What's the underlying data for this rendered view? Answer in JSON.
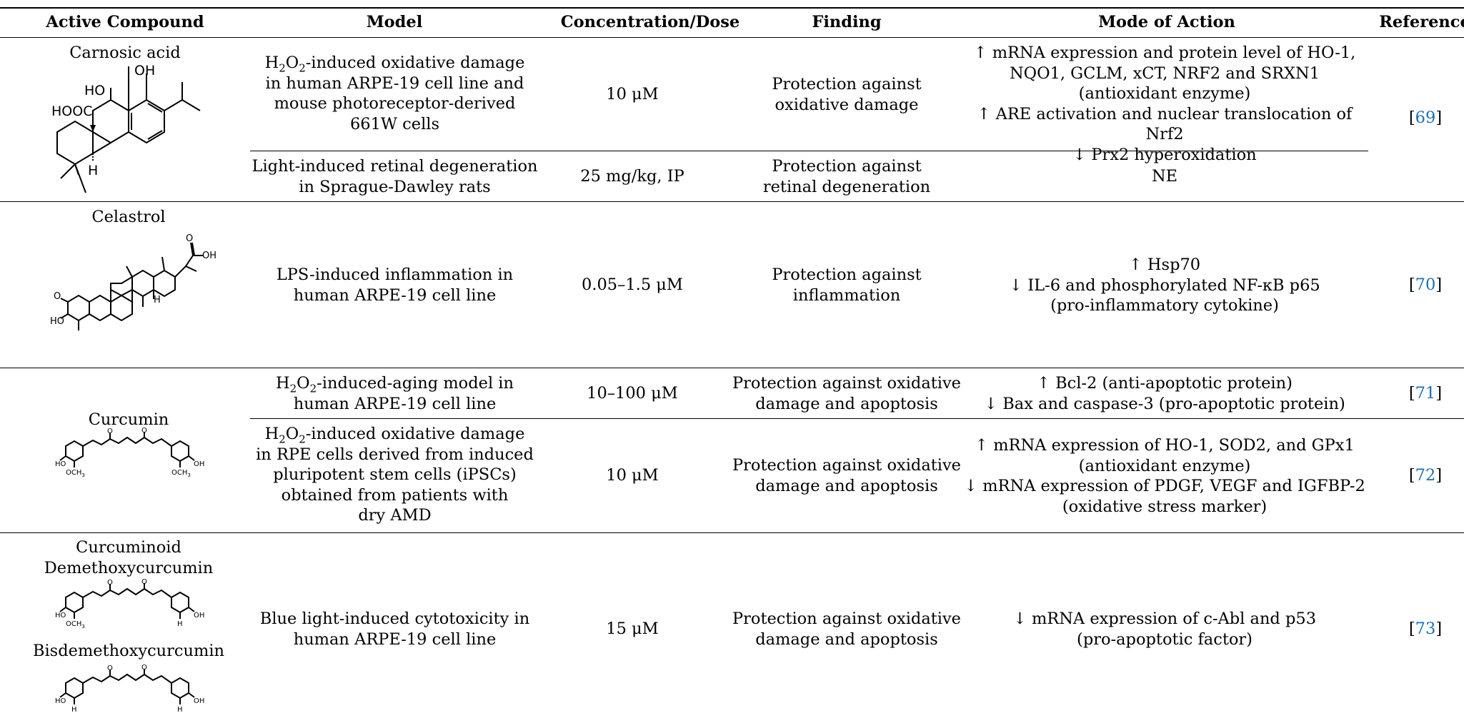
{
  "table": {
    "headers": {
      "compound": "Active Compound",
      "model": "Model",
      "dose": "Concentration/Dose",
      "finding": "Finding",
      "action": "Mode of Action",
      "ref": "Reference"
    },
    "carnosic": {
      "name": "Carnosic acid",
      "atom_oh": "OH",
      "atom_ho": "HO",
      "atom_hooc": "HOOC",
      "atom_h": "H",
      "row1": {
        "model_l1_a": "H",
        "model_l1_sub1": "2",
        "model_l1_b": "O",
        "model_l1_sub2": "2",
        "model_l1_c": "-induced oxidative damage",
        "model_l2": "in human ARPE-19 cell line and",
        "model_l3": "mouse photoreceptor-derived",
        "model_l4": "661W cells",
        "dose": "10 μM",
        "finding_l1": "Protection against",
        "finding_l2": "oxidative damage",
        "action_l1": "↑ mRNA expression and protein level of HO-1,",
        "action_l2": "NQO1, GCLM, xCT, NRF2 and SRXN1",
        "action_l3": "(antioxidant enzyme)",
        "action_l4": "↑ ARE activation and nuclear translocation of Nrf2",
        "action_l5": "↓ Prx2 hyperoxidation",
        "ref_open": "[",
        "ref_num": "69",
        "ref_close": "]"
      },
      "row2": {
        "model_l1": "Light-induced retinal degeneration",
        "model_l2": "in Sprague-Dawley rats",
        "dose": "25 mg/kg, IP",
        "finding_l1": "Protection against",
        "finding_l2": "retinal degeneration",
        "action": "NE"
      }
    },
    "celastrol": {
      "name": "Celastrol",
      "atom_oh": "OH",
      "atom_o": "O",
      "atom_o2": "O",
      "atom_ho": "HO",
      "atom_h": "H",
      "model_l1": "LPS-induced inflammation in",
      "model_l2": "human ARPE-19 cell line",
      "dose": "0.05–1.5 μM",
      "finding_l1": "Protection against",
      "finding_l2": "inflammation",
      "action_l1": "↑ Hsp70",
      "action_l2": "↓ IL-6 and phosphorylated NF-κB p65",
      "action_l3": "(pro-inflammatory cytokine)",
      "ref_open": "[",
      "ref_num": "70",
      "ref_close": "]"
    },
    "curcumin": {
      "name": "Curcumin",
      "atom_ho": "HO",
      "atom_oh": "OH",
      "atom_och3": "OCH",
      "atom_och3_sub": "3",
      "atom_o": "O",
      "row1": {
        "model_l1_a": "H",
        "model_l1_sub1": "2",
        "model_l1_b": "O",
        "model_l1_sub2": "2",
        "model_l1_c": "-induced-aging model in",
        "model_l2": "human ARPE-19 cell line",
        "dose": "10–100 μM",
        "finding_l1": "Protection against oxidative",
        "finding_l2": "damage and apoptosis",
        "action_l1": "↑ Bcl-2 (anti-apoptotic protein)",
        "action_l2": "↓ Bax and caspase-3 (pro-apoptotic protein)",
        "ref_open": "[",
        "ref_num": "71",
        "ref_close": "]"
      },
      "row2": {
        "model_l1_a": "H",
        "model_l1_sub1": "2",
        "model_l1_b": "O",
        "model_l1_sub2": "2",
        "model_l1_c": "-induced oxidative damage",
        "model_l2": "in RPE cells derived from induced",
        "model_l3": "pluripotent stem cells (iPSCs)",
        "model_l4": "obtained from patients with",
        "model_l5": "dry AMD",
        "dose": "10 μM",
        "finding_l1": "Protection against oxidative",
        "finding_l2": "damage and apoptosis",
        "action_l1": "↑ mRNA expression of HO-1, SOD2, and GPx1",
        "action_l2": "(antioxidant enzyme)",
        "action_l3": "↓ mRNA expression of PDGF, VEGF and IGFBP-2",
        "action_l4": "(oxidative stress marker)",
        "ref_open": "[",
        "ref_num": "72",
        "ref_close": "]"
      }
    },
    "curcuminoid": {
      "name_l1": "Curcuminoid",
      "name_l2": "Demethoxycurcumin",
      "name_l3": "Bisdemethoxycurcumin",
      "atom_ho": "HO",
      "atom_oh": "OH",
      "atom_och3": "OCH",
      "atom_och3_sub": "3",
      "atom_o": "O",
      "atom_h": "H",
      "model_l1": "Blue light-induced cytotoxicity in",
      "model_l2": "human ARPE-19 cell line",
      "dose": "15 μM",
      "finding_l1": "Protection against oxidative",
      "finding_l2": "damage and apoptosis",
      "action_l1": "↓ mRNA expression of c-Abl and p53",
      "action_l2": "(pro-apoptotic factor)",
      "ref_open": "[",
      "ref_num": "73",
      "ref_close": "]"
    }
  }
}
